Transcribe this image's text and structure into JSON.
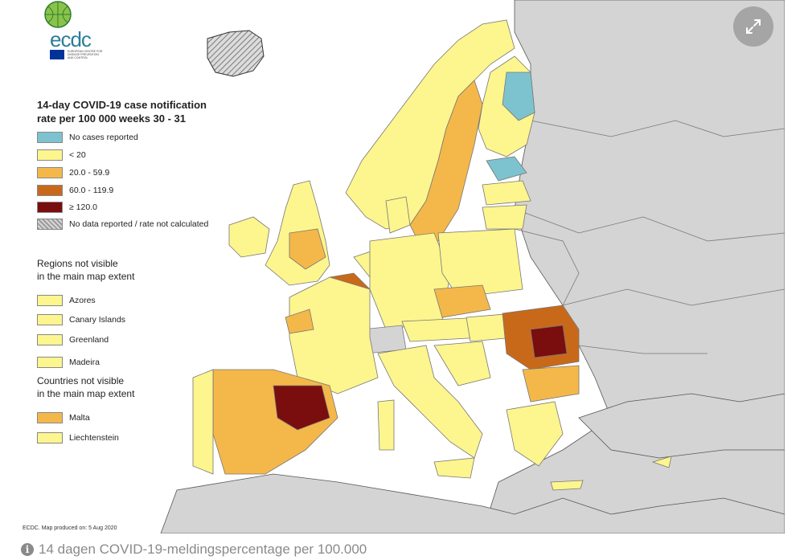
{
  "legend": {
    "title": "14-day COVID-19 case notification\nrate per 100 000 weeks 30 - 31",
    "items": [
      {
        "label": "No cases reported",
        "color": "#7dc3cf"
      },
      {
        "label": "< 20",
        "color": "#fdf58e"
      },
      {
        "label": "20.0 - 59.9",
        "color": "#f4b84a"
      },
      {
        "label": "60.0 - 119.9",
        "color": "#c8691a"
      },
      {
        "label": "≥ 120.0",
        "color": "#7a0d0d"
      },
      {
        "label": "No data reported / rate not calculated",
        "color": "hatched"
      }
    ],
    "regions_heading": "Regions not visible\nin the main map extent",
    "regions": [
      {
        "label": "Azores",
        "color": "#fdf58e"
      },
      {
        "label": "Canary Islands",
        "color": "#fdf58e"
      },
      {
        "label": "Greenland",
        "color": "#fdf58e"
      },
      {
        "label": "Madeira",
        "color": "#fdf58e"
      }
    ],
    "countries_heading": "Countries not visible\nin the main map extent",
    "countries": [
      {
        "label": "Malta",
        "color": "#f4b84a"
      },
      {
        "label": "Liechtenstein",
        "color": "#fdf58e"
      }
    ]
  },
  "logo": {
    "text": "ecdc",
    "subtext": "EUROPEAN CENTRE FOR\nDISEASE PREVENTION\nAND CONTROL"
  },
  "producer_note": "ECDC. Map produced on: 5 Aug 2020",
  "caption": "14 dagen COVID-19-meldingspercentage per 100.000",
  "icons": {
    "expand": "expand-icon",
    "info": "info-icon"
  },
  "colors": {
    "non_eu_land": "#d4d4d4",
    "sea": "#ffffff",
    "borders": "#6e6e6e"
  }
}
